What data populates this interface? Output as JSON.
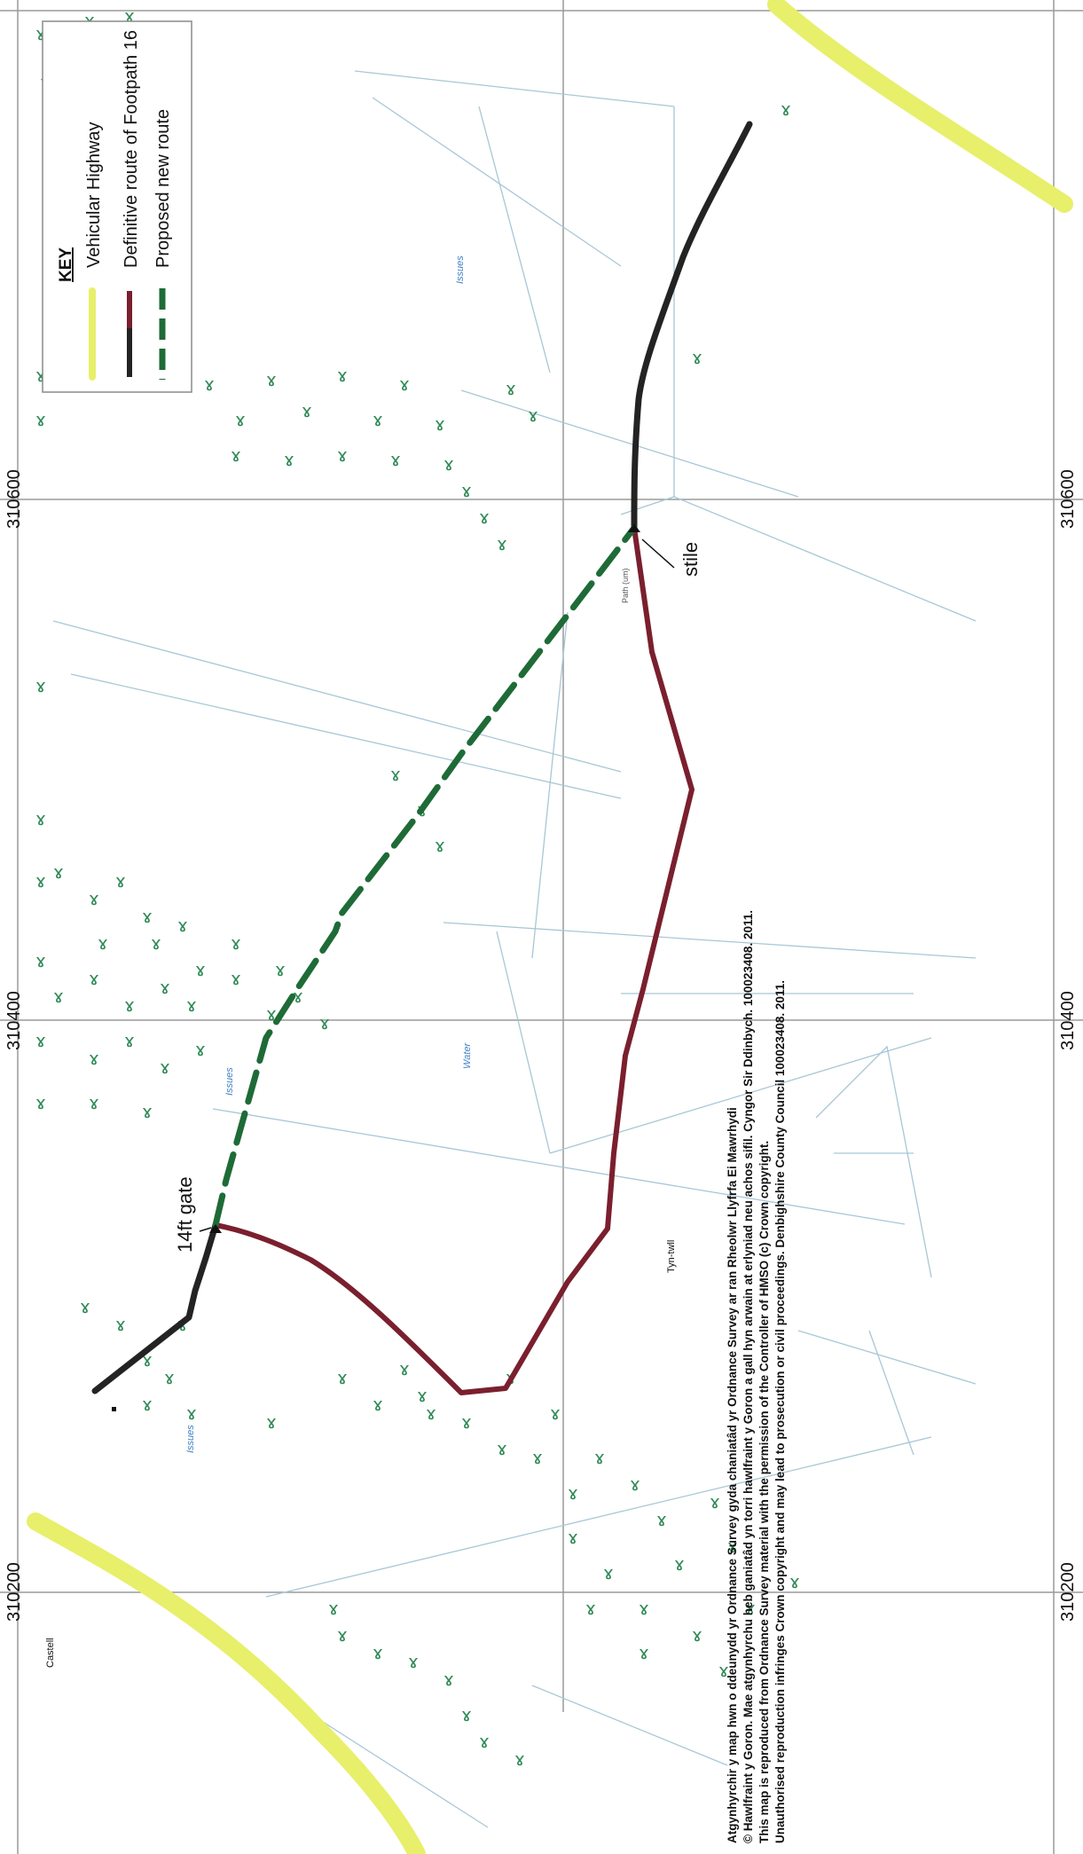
{
  "grid": {
    "labels_top": [
      "310600",
      "310400",
      "310200"
    ],
    "labels_bottom": [
      "310600",
      "310400",
      "310200"
    ]
  },
  "legend": {
    "title": "KEY",
    "items": [
      {
        "label": "Vehicular Highway",
        "color": "#e8ef6a"
      },
      {
        "label": "Definitive route of Footpath 16",
        "colors": [
          "#232323",
          "#7a1f2e"
        ]
      },
      {
        "label": "Proposed new route",
        "color": "#1e6b37"
      }
    ]
  },
  "annotations": {
    "gate": "14ft gate",
    "stile": "stile"
  },
  "map_labels": {
    "issues_1": "Issues",
    "issues_2": "Issues",
    "issues_3": "Issues",
    "water": "Water",
    "tyn_twll": "Tyn-twll",
    "castell": "Castell",
    "path_um": "Path (um)"
  },
  "copyright": {
    "line1": "Atgynhyrchir y map hwn o ddeunydd yr Ordnance Survey gyda chaniatâd yr Ordnance Survey ar ran Rheolwr Llyfrfa Ei Mawrhydi",
    "line2": "© Hawlfraint y Goron. Mae atgynhyrchu heb ganiatâd yn torri hawlfraint y Goron a gall hyn arwain at erlyniad neu achos sifil. Cyngor Sir Ddinbych. 100023408. 2011.",
    "line3": "This map is reproduced from Ordnance Survey material with the permission of the Controller of HMSO (c) Crown copyright.",
    "line4": "Unauthorised reproduction infringes Crown copyright and may lead to prosecution or civil proceedings. Denbighshire County Council  100023408. 2011."
  },
  "colors": {
    "highway": "#e8ef6a",
    "definitive_black": "#232323",
    "definitive_maroon": "#7a1f2e",
    "proposed": "#1e6b37",
    "trees": "#2f8a55",
    "water_text": "#3f7fc4"
  }
}
